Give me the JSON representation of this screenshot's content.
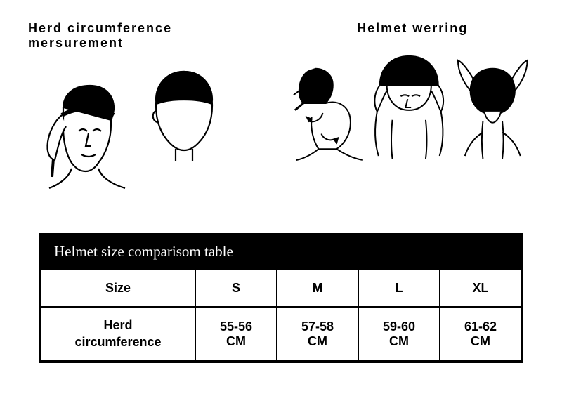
{
  "sections": {
    "left_title": "Herd circumference mersurement",
    "right_title": "Helmet werring"
  },
  "table": {
    "title": "Helmet size comparisom table",
    "row_headers": [
      "Size",
      "Herd circumference"
    ],
    "columns": [
      "S",
      "M",
      "L",
      "XL"
    ],
    "values": [
      {
        "line1": "55-56",
        "line2": "CM"
      },
      {
        "line1": "57-58",
        "line2": "CM"
      },
      {
        "line1": "59-60",
        "line2": "CM"
      },
      {
        "line1": "61-62",
        "line2": "CM"
      }
    ],
    "colors": {
      "header_bg": "#000000",
      "header_fg": "#ffffff",
      "border": "#000000",
      "cell_bg": "#ffffff",
      "cell_fg": "#000000"
    },
    "title_font": "Times New Roman, serif",
    "body_font": "Arial, sans-serif"
  },
  "illustrations": {
    "left": [
      "head-measure-front",
      "head-measure-back"
    ],
    "right": [
      "helmet-put-on-step1",
      "helmet-put-on-step2",
      "helmet-put-on-step3"
    ]
  }
}
